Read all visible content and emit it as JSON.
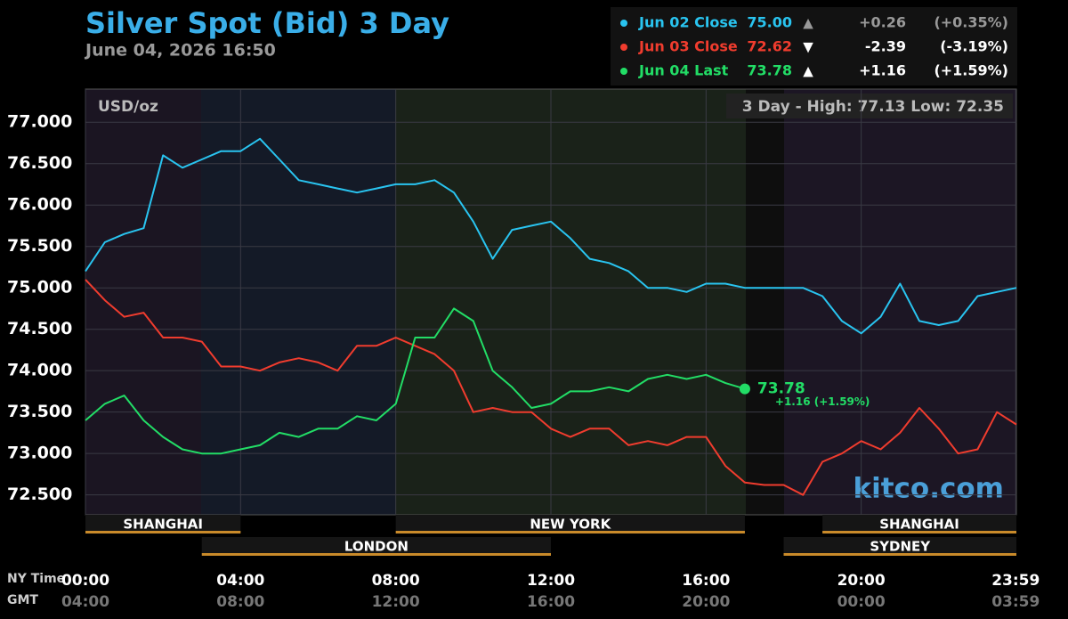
{
  "chart_data": {
    "type": "line",
    "title": "Silver Spot (Bid) 3 Day",
    "subtitle": "June 04, 2026 16:50",
    "unit_label": "USD/oz",
    "range_label": "3 Day - High: 77.13  Low: 72.35",
    "watermark": "kitco.com",
    "x_row_label": "NY Time",
    "x2_row_label": "GMT",
    "x": [
      0,
      0.5,
      1,
      1.5,
      2,
      2.5,
      3,
      3.5,
      4,
      4.5,
      5,
      5.5,
      6,
      6.5,
      7,
      7.5,
      8,
      8.5,
      9,
      9.5,
      10,
      10.5,
      11,
      11.5,
      12,
      12.5,
      13,
      13.5,
      14,
      14.5,
      15,
      15.5,
      16,
      16.5,
      17,
      17.5,
      18,
      18.5,
      19,
      19.5,
      20,
      20.5,
      21,
      21.5,
      22,
      22.5,
      23,
      23.5,
      24
    ],
    "xlim": [
      0,
      24
    ],
    "xticks": [
      {
        "value": 0,
        "label": "00:00"
      },
      {
        "value": 4,
        "label": "04:00"
      },
      {
        "value": 8,
        "label": "08:00"
      },
      {
        "value": 12,
        "label": "12:00"
      },
      {
        "value": 16,
        "label": "16:00"
      },
      {
        "value": 20,
        "label": "20:00"
      },
      {
        "value": 23.983,
        "label": "23:59"
      }
    ],
    "x2_tick_labels": [
      "04:00",
      "08:00",
      "12:00",
      "16:00",
      "20:00",
      "00:00",
      "03:59"
    ],
    "ylim": [
      72.26,
      77.4
    ],
    "yticks": [
      {
        "value": 72.5,
        "label": "72.500"
      },
      {
        "value": 73,
        "label": "73.000"
      },
      {
        "value": 73.5,
        "label": "73.500"
      },
      {
        "value": 74,
        "label": "74.000"
      },
      {
        "value": 74.5,
        "label": "74.500"
      },
      {
        "value": 75,
        "label": "75.000"
      },
      {
        "value": 75.5,
        "label": "75.500"
      },
      {
        "value": 76,
        "label": "76.000"
      },
      {
        "value": 76.5,
        "label": "76.500"
      },
      {
        "value": 77,
        "label": "77.000"
      }
    ],
    "grid": true,
    "series": [
      {
        "name": "Jun 02 Close",
        "color": "#29c4f0",
        "legend_value": "75.00",
        "arrow": "▲",
        "change": "+0.26",
        "change_pct": "(+0.35%)",
        "values": [
          75.2,
          75.55,
          75.65,
          75.72,
          76.6,
          76.45,
          76.55,
          76.65,
          76.65,
          76.8,
          76.55,
          76.3,
          76.25,
          76.2,
          76.15,
          76.2,
          76.25,
          76.25,
          76.3,
          76.15,
          75.8,
          75.35,
          75.7,
          75.75,
          75.8,
          75.6,
          75.35,
          75.3,
          75.2,
          75.0,
          75.0,
          74.95,
          75.05,
          75.05,
          75.0,
          75.0,
          75.0,
          75.0,
          74.9,
          74.6,
          74.45,
          74.65,
          75.05,
          74.6,
          74.55,
          74.6,
          74.9,
          74.95,
          75.0
        ]
      },
      {
        "name": "Jun 03 Close",
        "color": "#f03c2e",
        "legend_value": "72.62",
        "arrow": "▼",
        "change": "-2.39",
        "change_pct": "(-3.19%)",
        "values": [
          75.1,
          74.85,
          74.65,
          74.7,
          74.4,
          74.4,
          74.35,
          74.05,
          74.05,
          74.0,
          74.1,
          74.15,
          74.1,
          74.0,
          74.3,
          74.3,
          74.4,
          74.3,
          74.2,
          74.0,
          73.5,
          73.55,
          73.5,
          73.5,
          73.3,
          73.2,
          73.3,
          73.3,
          73.1,
          73.15,
          73.1,
          73.2,
          73.2,
          72.85,
          72.65,
          72.62,
          72.62,
          72.5,
          72.9,
          73.0,
          73.15,
          73.05,
          73.25,
          73.55,
          73.3,
          73.0,
          73.05,
          73.5,
          73.35
        ]
      },
      {
        "name": "Jun 04 Last",
        "color": "#22dd66",
        "legend_value": "73.78",
        "arrow": "▲",
        "change": "+1.16",
        "change_pct": "(+1.59%)",
        "end_label": "73.78",
        "end_change": "+1.16 (+1.59%)",
        "values": [
          73.4,
          73.6,
          73.7,
          73.4,
          73.2,
          73.05,
          73.0,
          73.0,
          73.05,
          73.1,
          73.25,
          73.2,
          73.3,
          73.3,
          73.45,
          73.4,
          73.6,
          74.4,
          74.4,
          74.75,
          74.6,
          74.0,
          73.8,
          73.55,
          73.6,
          73.75,
          73.75,
          73.8,
          73.75,
          73.9,
          73.95,
          73.9,
          73.95,
          73.85,
          73.78,
          null,
          null,
          null,
          null,
          null,
          null,
          null,
          null,
          null,
          null,
          null,
          null,
          null,
          null
        ]
      }
    ],
    "sessions": [
      {
        "name": "SHANGHAI",
        "start": 0,
        "end": 4,
        "row": 1
      },
      {
        "name": "NEW YORK",
        "start": 8,
        "end": 17,
        "row": 1
      },
      {
        "name": "SHANGHAI",
        "start": 19,
        "end": 24,
        "row": 1
      },
      {
        "name": "LONDON",
        "start": 3,
        "end": 12,
        "row": 2
      },
      {
        "name": "SYDNEY",
        "start": 18,
        "end": 24,
        "row": 2
      }
    ]
  }
}
